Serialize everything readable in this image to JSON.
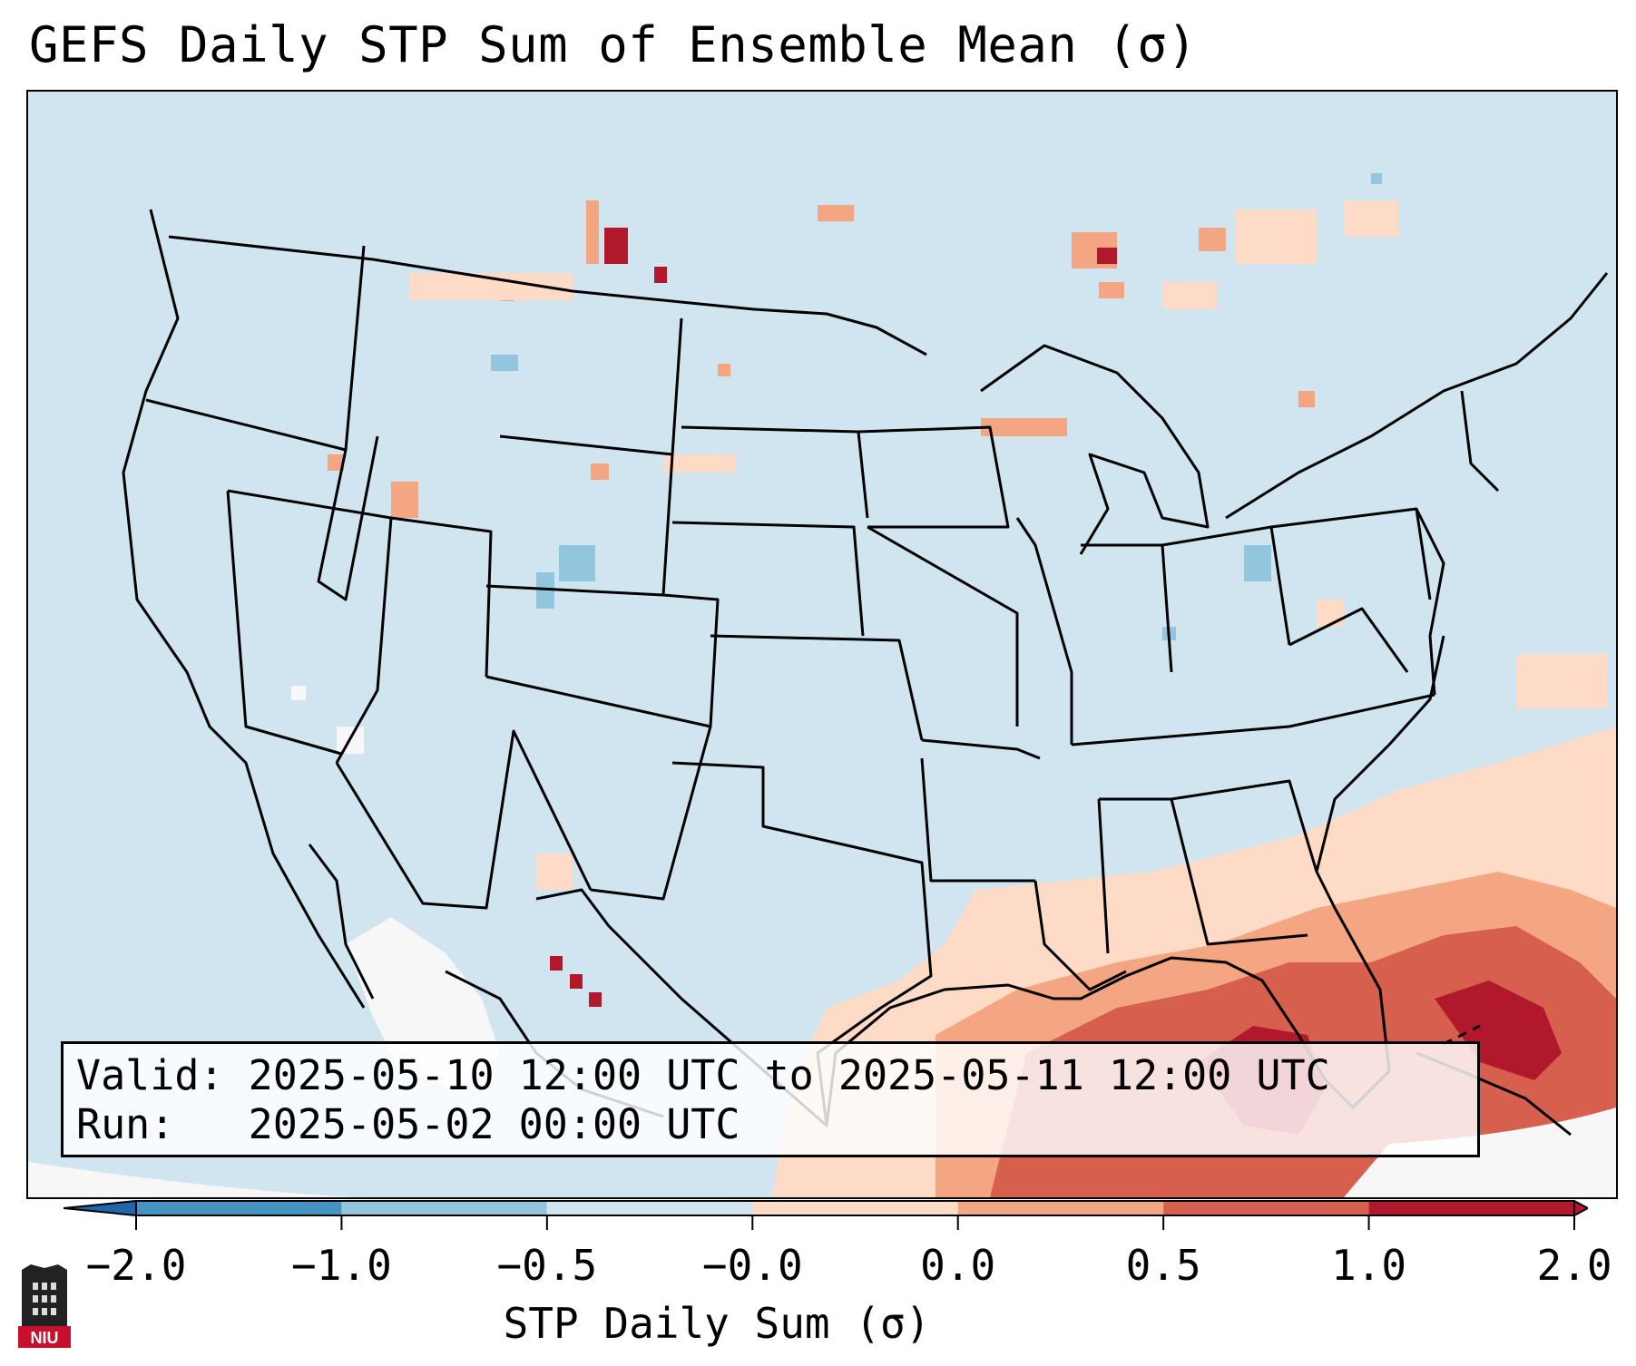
{
  "title": "GEFS Daily STP Sum of Ensemble Mean (σ)",
  "info": {
    "valid_line": "Valid: 2025-05-10 12:00 UTC to 2025-05-11 12:00 UTC",
    "run_line": "Run:   2025-05-02 00:00 UTC"
  },
  "colorbar": {
    "label": "STP Daily Sum (σ)",
    "ticks": [
      "−2.0",
      "−1.0",
      "−0.5",
      "−0.0",
      "0.0",
      "0.5",
      "1.0",
      "2.0"
    ],
    "colors": [
      "#4393c3",
      "#92c5de",
      "#d1e5f0",
      "#f7f7f7",
      "#fddbc7",
      "#f4a582",
      "#d6604d",
      "#b2182b"
    ],
    "extend_low_color": "#2166ac",
    "extend_high_color": "#b2182b"
  },
  "map": {
    "region": "Continental United States",
    "background_color": "#d1e5f0"
  },
  "logo": {
    "text": "NIU",
    "color": "#c8102e"
  }
}
